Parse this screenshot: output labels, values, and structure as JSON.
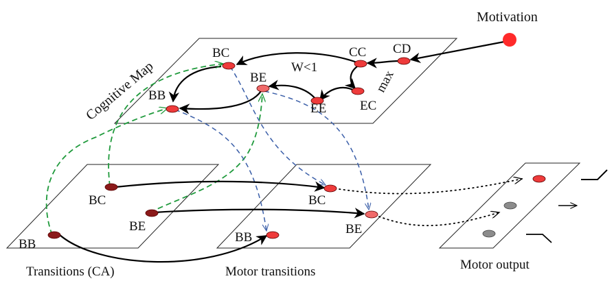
{
  "labels": {
    "motivation": "Motivation",
    "cognitive_map": "Cognitive Map",
    "transitions_ca": "Transitions (CA)",
    "motor_transitions": "Motor transitions",
    "motor_output": "Motor output",
    "w_lt_1": "W<1",
    "max": "max"
  },
  "cognitive_map_nodes": {
    "bc": "BC",
    "cc": "CC",
    "cd": "CD",
    "be": "BE",
    "ee": "EE",
    "ec": "EC",
    "bb": "BB"
  },
  "transition_nodes": {
    "bc": "BC",
    "be": "BE",
    "bb": "BB"
  },
  "motor_transition_nodes": {
    "bc": "BC",
    "be": "BE",
    "bb": "BB"
  },
  "colors": {
    "node_red": "#ee3b3b",
    "node_dark": "#8b1a1a",
    "node_gray": "#8c8c8c",
    "green_link": "#1f9a3c",
    "blue_link": "#3a5ea8",
    "motivation_dot": "#ff2a2a"
  }
}
